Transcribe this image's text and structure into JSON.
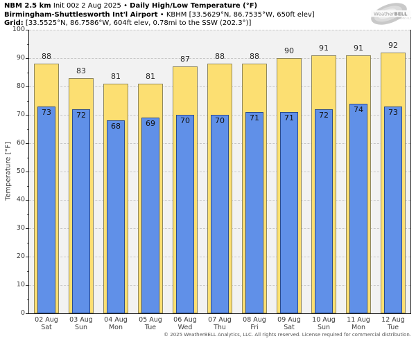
{
  "header": {
    "line1_bold": "NBM 2.5 km",
    "line1_init": " Init 00z 2 Aug 2025 ",
    "line1_bullet": "• ",
    "line1_title": "Daily High/Low Temperature (°F)",
    "line2_bold": "Birmingham-Shuttlesworth Int'l Airport",
    "line2_bullet": " • ",
    "line2_station": "KBHM [33.5629°N, 86.7535°W, 650ft elev]",
    "line3_bold": "Grid:",
    "line3_info": " [33.5525°N, 86.7586°W, 604ft elev, 0.78mi to the SSW (202.3°)]"
  },
  "logo": {
    "brand1": "Weather",
    "brand2": "BELL",
    "sub": "Analytics LLC"
  },
  "chart_data": {
    "type": "bar",
    "title": "Daily High/Low Temperature (°F)",
    "categories": [
      "02 Aug",
      "03 Aug",
      "04 Aug",
      "05 Aug",
      "06 Aug",
      "07 Aug",
      "08 Aug",
      "09 Aug",
      "10 Aug",
      "11 Aug",
      "12 Aug"
    ],
    "weekdays": [
      "Sat",
      "Sun",
      "Mon",
      "Tue",
      "Wed",
      "Thu",
      "Fri",
      "Sat",
      "Sun",
      "Mon",
      "Tue"
    ],
    "series": [
      {
        "name": "Daily High",
        "values": [
          88,
          83,
          81,
          81,
          87,
          88,
          88,
          90,
          91,
          91,
          92
        ],
        "color": "#fcdf72",
        "border": "#8f875e"
      },
      {
        "name": "Daily Low",
        "values": [
          73,
          72,
          68,
          69,
          70,
          70,
          71,
          71,
          72,
          74,
          73
        ],
        "color": "#6090e8",
        "border": "#2c4c8c"
      }
    ],
    "ylabel": "Temperature [°F]",
    "ylim": [
      0,
      100
    ],
    "yticks": [
      0,
      10,
      20,
      30,
      40,
      50,
      60,
      70,
      80,
      90,
      100
    ],
    "grid": "dashed horizontal, light gray",
    "legend": "none",
    "plot_background": "#f2f2f2"
  },
  "footer": {
    "text": "© 2025 WeatherBELL Analytics, LLC. All rights reserved. License required for commercial distribution."
  }
}
